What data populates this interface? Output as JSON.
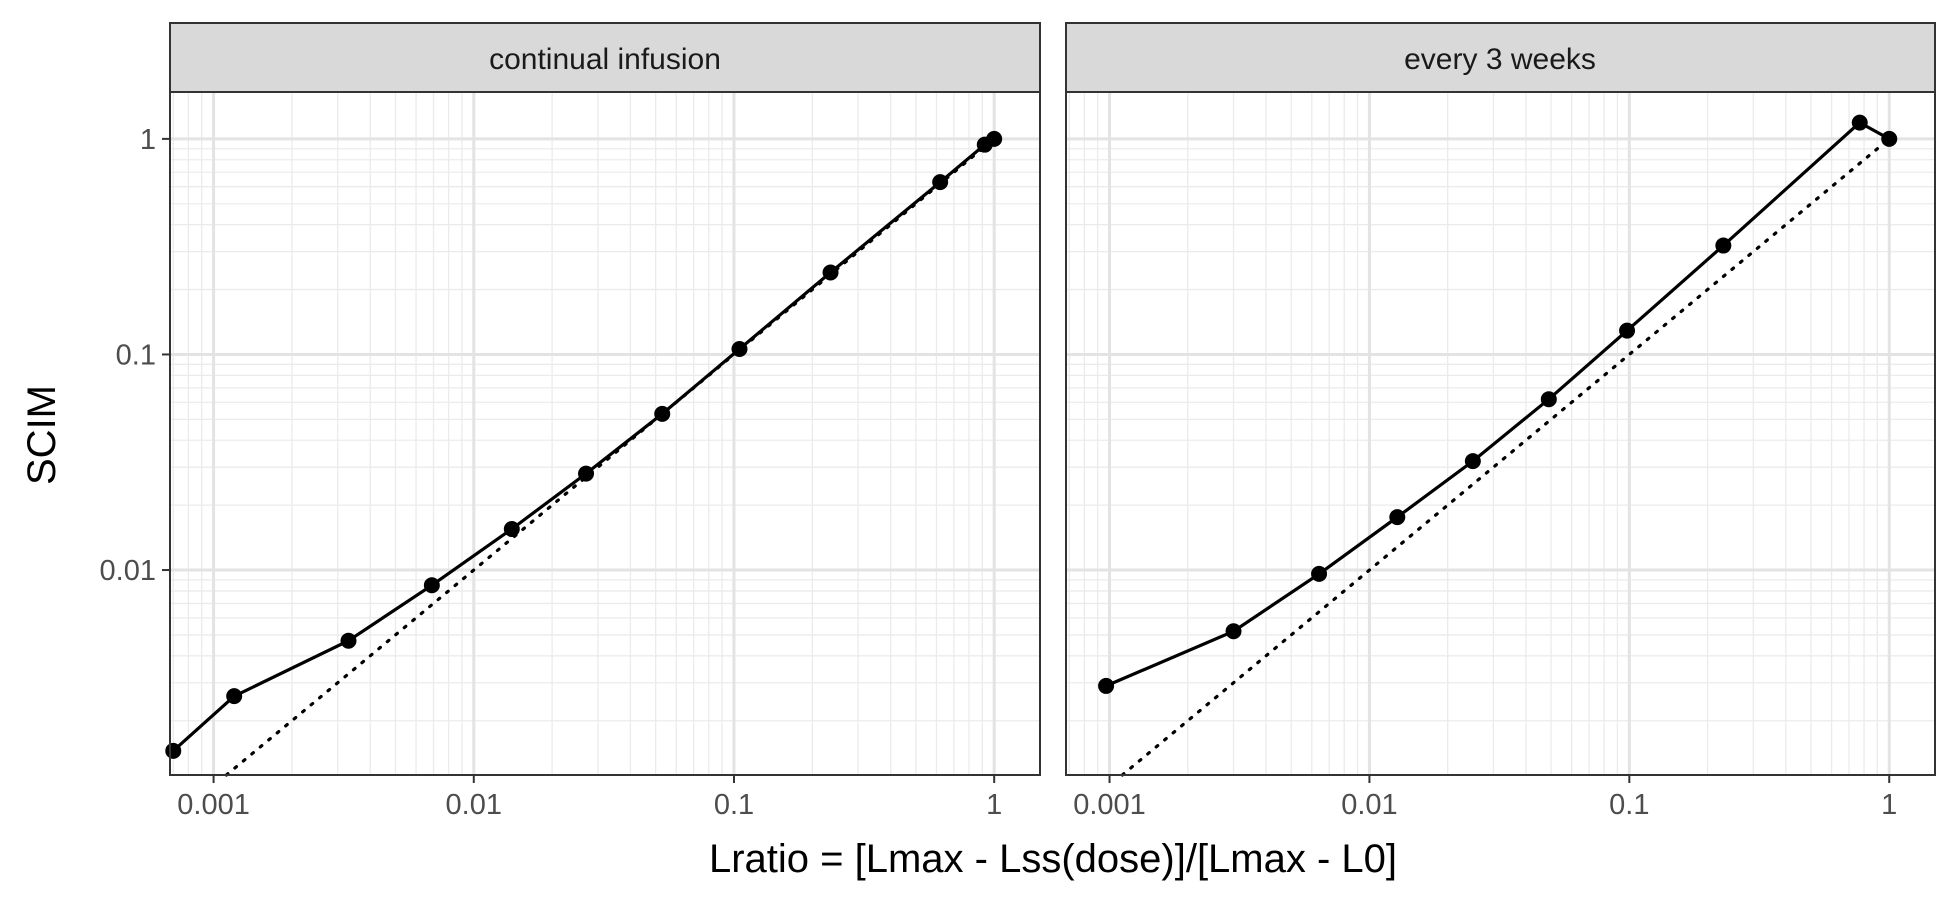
{
  "chart_data": {
    "type": "line",
    "xlabel": "Lratio = [Lmax - Lss(dose)]/[Lmax - L0]",
    "ylabel": "SCIM",
    "x_scale": "log",
    "y_scale": "log",
    "xlim": [
      0.00068,
      1.5
    ],
    "ylim": [
      0.00112,
      1.65
    ],
    "x_ticks": [
      {
        "value": 0.001,
        "label": "0.001"
      },
      {
        "value": 0.01,
        "label": "0.01"
      },
      {
        "value": 0.1,
        "label": "0.1"
      },
      {
        "value": 1,
        "label": "1"
      }
    ],
    "y_ticks": [
      {
        "value": 0.01,
        "label": "0.01"
      },
      {
        "value": 0.1,
        "label": "0.1"
      },
      {
        "value": 1,
        "label": "1"
      }
    ],
    "grid": true,
    "reference_line": "y = x (dotted)",
    "panels": [
      {
        "title": "continual infusion",
        "x": [
          0.0007,
          0.0012,
          0.0033,
          0.0069,
          0.014,
          0.027,
          0.053,
          0.105,
          0.235,
          0.62,
          0.92,
          1.0
        ],
        "y": [
          0.00145,
          0.0026,
          0.0047,
          0.0085,
          0.0155,
          0.028,
          0.053,
          0.106,
          0.24,
          0.63,
          0.94,
          1.0
        ]
      },
      {
        "title": "every 3 weeks",
        "x": [
          0.00097,
          0.003,
          0.0064,
          0.0128,
          0.025,
          0.049,
          0.098,
          0.23,
          0.77,
          1.0
        ],
        "y": [
          0.0029,
          0.0052,
          0.0096,
          0.0176,
          0.032,
          0.062,
          0.129,
          0.32,
          1.19,
          1.0
        ]
      }
    ]
  }
}
